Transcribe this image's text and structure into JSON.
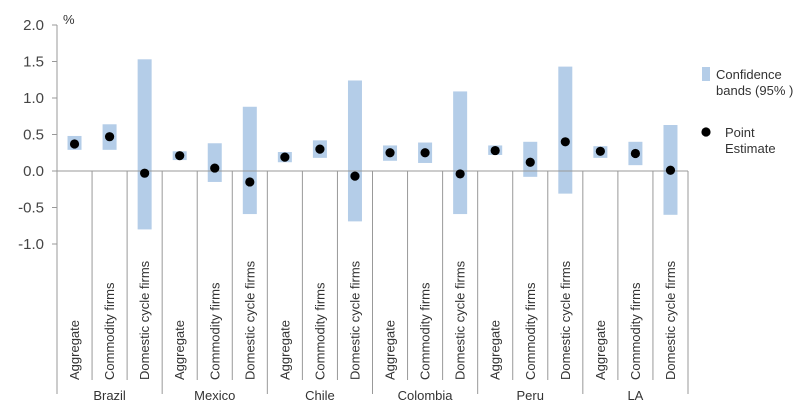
{
  "chart_data": {
    "type": "error-band",
    "unit_label": "%",
    "ylim": [
      -1.0,
      2.0
    ],
    "y_ticks": [
      "2.0",
      "1.5",
      "1.0",
      "0.5",
      "0.0",
      "-0.5",
      "-1.0"
    ],
    "y_tick_values": [
      2.0,
      1.5,
      1.0,
      0.5,
      0.0,
      -0.5,
      -1.0
    ],
    "colors": {
      "band": "#b4cde8",
      "point": "#000000",
      "axis": "#999999"
    },
    "legend": {
      "placement": "right",
      "band_label_lines": [
        "Confidence",
        "bands (95% )"
      ],
      "point_label_lines": [
        "Point",
        "Estimate"
      ]
    },
    "groups": [
      {
        "name": "Brazil",
        "items": [
          {
            "category": "Aggregate",
            "low": 0.29,
            "high": 0.48,
            "point": 0.37
          },
          {
            "category": "Commodity firms",
            "low": 0.29,
            "high": 0.64,
            "point": 0.47
          },
          {
            "category": "Domestic cycle firms",
            "low": -0.8,
            "high": 1.53,
            "point": -0.03
          }
        ]
      },
      {
        "name": "Mexico",
        "items": [
          {
            "category": "Aggregate",
            "low": 0.15,
            "high": 0.27,
            "point": 0.21
          },
          {
            "category": "Commodity firms",
            "low": -0.15,
            "high": 0.38,
            "point": 0.04
          },
          {
            "category": "Domestic cycle firms",
            "low": -0.59,
            "high": 0.88,
            "point": -0.15
          }
        ]
      },
      {
        "name": "Chile",
        "items": [
          {
            "category": "Aggregate",
            "low": 0.12,
            "high": 0.26,
            "point": 0.19
          },
          {
            "category": "Commodity firms",
            "low": 0.18,
            "high": 0.42,
            "point": 0.3
          },
          {
            "category": "Domestic cycle firms",
            "low": -0.69,
            "high": 1.24,
            "point": -0.07
          }
        ]
      },
      {
        "name": "Colombia",
        "items": [
          {
            "category": "Aggregate",
            "low": 0.14,
            "high": 0.35,
            "point": 0.25
          },
          {
            "category": "Commodity firms",
            "low": 0.11,
            "high": 0.39,
            "point": 0.25
          },
          {
            "category": "Domestic cycle firms",
            "low": -0.59,
            "high": 1.09,
            "point": -0.04
          }
        ]
      },
      {
        "name": "Peru",
        "items": [
          {
            "category": "Aggregate",
            "low": 0.22,
            "high": 0.35,
            "point": 0.28
          },
          {
            "category": "Commodity firms",
            "low": -0.08,
            "high": 0.4,
            "point": 0.12
          },
          {
            "category": "Domestic cycle firms",
            "low": -0.31,
            "high": 1.43,
            "point": 0.4
          }
        ]
      },
      {
        "name": "LA",
        "items": [
          {
            "category": "Aggregate",
            "low": 0.18,
            "high": 0.34,
            "point": 0.27
          },
          {
            "category": "Commodity firms",
            "low": 0.08,
            "high": 0.4,
            "point": 0.24
          },
          {
            "category": "Domestic cycle firms",
            "low": -0.6,
            "high": 0.63,
            "point": 0.01
          }
        ]
      }
    ]
  }
}
